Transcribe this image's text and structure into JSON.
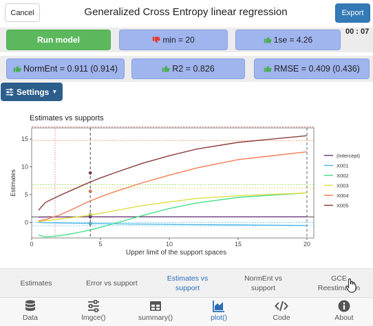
{
  "header": {
    "cancel_label": "Cancel",
    "title": "Generalized Cross Entropy linear regression",
    "export_label": "Export"
  },
  "metrics": {
    "run_label": "Run model",
    "min": "min = 20",
    "one_se": "1se = 4.26",
    "timer": "00 : 07",
    "norment": "NormEnt = 0.911 (0.914)",
    "r2": "R2 = 0.826",
    "rmse": "RMSE = 0.409 (0.436)"
  },
  "settings_label": "Settings",
  "colors": {
    "accent": "#337ab7",
    "run": "#5cb85c",
    "pill": "#a0b4ee",
    "settings": "#2c5e8c",
    "thumb_up": "#4caf50",
    "thumb_down": "#e53935",
    "active_tab": "#2a6ebb"
  },
  "chart_data": {
    "type": "line",
    "title": "Estimates vs supports",
    "xlabel": "Upper limit of the support spaces",
    "ylabel": "Estimates",
    "xlim": [
      0,
      20.5
    ],
    "ylim": [
      -2.8,
      17
    ],
    "xticks": [
      0,
      5,
      10,
      15,
      20
    ],
    "yticks": [
      0,
      5,
      10,
      15
    ],
    "grid": false,
    "legend": "right",
    "vlines": [
      {
        "x": 4.26,
        "style": "dashed",
        "color": "#333333"
      },
      {
        "x": 1.7,
        "style": "dotted",
        "color": "#e57373"
      },
      {
        "x": 20,
        "style": "dashed",
        "color": "#555555"
      }
    ],
    "hlines": [
      {
        "y": 17.2,
        "color": "#e57373"
      },
      {
        "y": 14.7,
        "color": "#ff9966"
      },
      {
        "y": 6.8,
        "color": "#99dd55"
      },
      {
        "y": 6.2,
        "color": "#dddd55"
      },
      {
        "y": 1.0,
        "color": "#333333"
      },
      {
        "y": 0.0,
        "color": "#66ccee"
      },
      {
        "y": -0.6,
        "color": "#66ccee"
      }
    ],
    "series": [
      {
        "name": "(Intercept)",
        "color": "#6a3d7a",
        "x": [
          0.5,
          1,
          2,
          4,
          6,
          8,
          10,
          12,
          15,
          20
        ],
        "y": [
          0.95,
          0.97,
          0.99,
          1.0,
          1.0,
          1.0,
          1.0,
          1.0,
          1.0,
          1.0
        ]
      },
      {
        "name": "X001",
        "color": "#4db6e8",
        "x": [
          0.5,
          1,
          2,
          4,
          6,
          8,
          10,
          12,
          15,
          20
        ],
        "y": [
          0.0,
          -0.05,
          -0.1,
          -0.18,
          -0.25,
          -0.3,
          -0.35,
          -0.4,
          -0.45,
          -0.55
        ]
      },
      {
        "name": "X002",
        "color": "#44e08a",
        "x": [
          0.5,
          1,
          2,
          3,
          4,
          5,
          6,
          8,
          10,
          12,
          15,
          20
        ],
        "y": [
          -2.3,
          -2.6,
          -2.4,
          -2.0,
          -1.5,
          -0.9,
          -0.2,
          1.2,
          2.5,
          3.5,
          4.5,
          5.3
        ]
      },
      {
        "name": "X003",
        "color": "#dddd44",
        "x": [
          0.5,
          1,
          2,
          4,
          6,
          8,
          10,
          12,
          15,
          20
        ],
        "y": [
          0.1,
          0.3,
          0.6,
          1.2,
          2.1,
          3.0,
          3.7,
          4.3,
          4.8,
          5.3
        ]
      },
      {
        "name": "X004",
        "color": "#f07c50",
        "x": [
          0.5,
          1,
          2,
          3,
          4,
          5,
          6,
          8,
          10,
          12,
          15,
          20
        ],
        "y": [
          0.3,
          0.5,
          1.3,
          2.4,
          3.6,
          4.6,
          5.5,
          7.1,
          8.5,
          9.8,
          11.3,
          12.7
        ]
      },
      {
        "name": "X005",
        "color": "#8b3a3a",
        "x": [
          0.5,
          1,
          2,
          3,
          4,
          5,
          6,
          8,
          10,
          12,
          15,
          20
        ],
        "y": [
          2.2,
          3.6,
          4.8,
          5.9,
          7.0,
          8.0,
          8.9,
          10.6,
          12.0,
          13.2,
          14.4,
          15.6
        ]
      }
    ],
    "markers": [
      {
        "x": 4.26,
        "y": 8.9,
        "color": "#8b3a3a"
      },
      {
        "x": 4.26,
        "y": 5.6,
        "color": "#f07c50"
      },
      {
        "x": 4.26,
        "y": 1.4,
        "color": "#dddd44"
      },
      {
        "x": 4.26,
        "y": 1.0,
        "color": "#6a3d7a"
      },
      {
        "x": 4.26,
        "y": -0.2,
        "color": "#4db6e8"
      }
    ]
  },
  "tabs": [
    {
      "label": "Estimates",
      "active": false
    },
    {
      "label": "Error vs support",
      "active": false
    },
    {
      "label": "Estimates vs support",
      "active": true
    },
    {
      "label": "NormEnt vs support",
      "active": false
    },
    {
      "label": "GCE Reestimation",
      "active": false
    }
  ],
  "nav": [
    {
      "label": "Data",
      "icon": "database-icon"
    },
    {
      "label": "lmgce()",
      "icon": "sliders-icon"
    },
    {
      "label": "summary()",
      "icon": "table-icon"
    },
    {
      "label": "plot()",
      "icon": "chart-area-icon",
      "active": true
    },
    {
      "label": "Code",
      "icon": "code-icon"
    },
    {
      "label": "About",
      "icon": "info-icon"
    }
  ]
}
